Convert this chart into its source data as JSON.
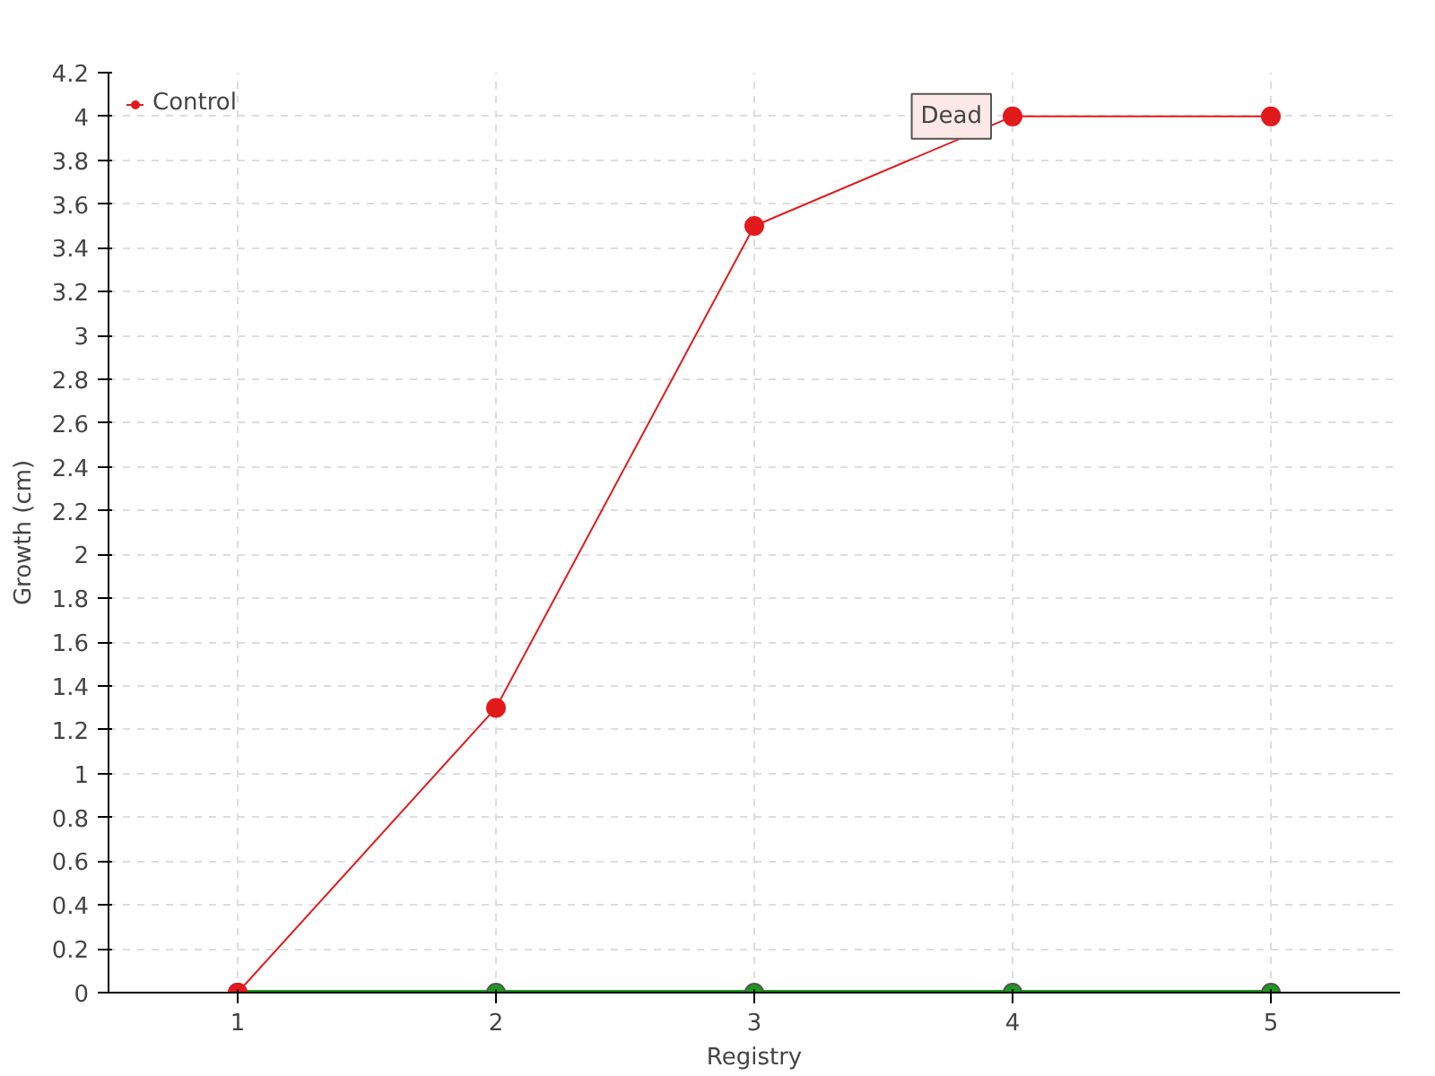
{
  "chart_data": {
    "type": "line",
    "xlabel": "Registry",
    "ylabel": "Growth (cm)",
    "x": [
      1,
      2,
      3,
      4,
      5
    ],
    "series": [
      {
        "color": "#1a9a1a",
        "values": [
          0,
          0,
          0,
          0,
          0
        ]
      },
      {
        "name": "Control",
        "color": "#e31a1c",
        "values": [
          0,
          1.3,
          3.5,
          4,
          4
        ]
      }
    ],
    "xlim": [
      0.5,
      5.5
    ],
    "xticks": [
      1,
      2,
      3,
      4,
      5
    ],
    "ylim": [
      0,
      4.2
    ],
    "yticks": [
      0,
      0.2,
      0.4,
      0.6,
      0.8,
      1,
      1.2,
      1.4,
      1.6,
      1.8,
      2,
      2.2,
      2.4,
      2.6,
      2.8,
      3,
      3.2,
      3.4,
      3.6,
      3.8,
      4,
      4.2
    ],
    "grid": true,
    "legend": "top left",
    "marker": "circle",
    "line_style": "solid",
    "annotations": [
      {
        "text": "Dead",
        "x": 4,
        "y": 4
      }
    ]
  }
}
